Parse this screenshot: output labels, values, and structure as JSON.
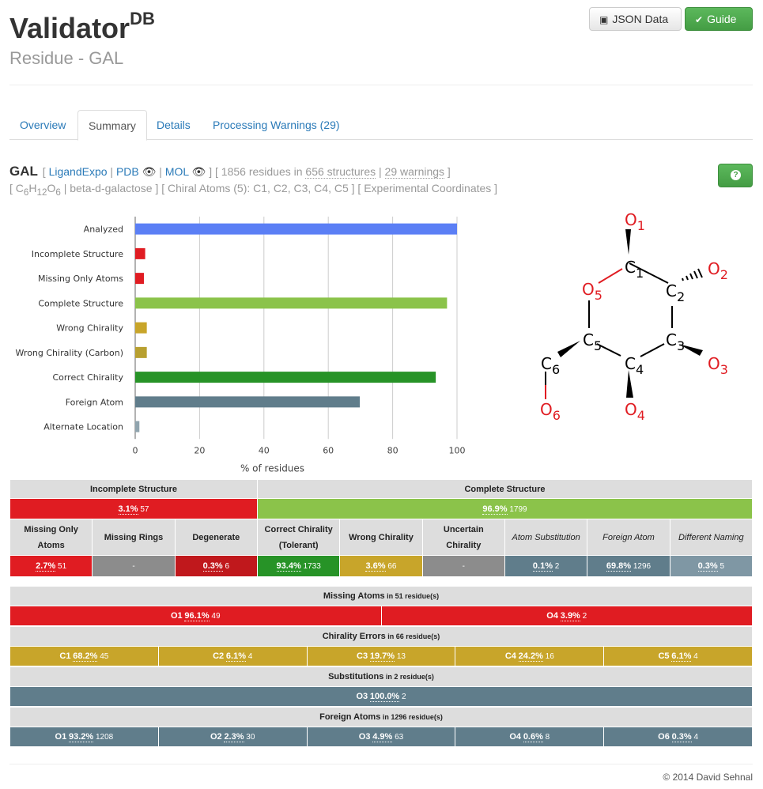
{
  "header": {
    "app_title": "Validator",
    "app_title_sup": "DB",
    "subtitle": "Residue - GAL",
    "json_button": "JSON Data",
    "guide_button": "Guide"
  },
  "tabs": [
    {
      "label": "Overview"
    },
    {
      "label": "Summary"
    },
    {
      "label": "Details"
    },
    {
      "label": "Processing Warnings (29)"
    }
  ],
  "residue": {
    "name": "GAL",
    "open_bracket": "[",
    "link_ligandexpo": "LigandExpo",
    "sep": "|",
    "link_pdb": "PDB",
    "link_mol": "MOL",
    "close_bracket": "]",
    "count_text": "[ 1856 residues in ",
    "structures": "656 structures",
    "pipe": " | ",
    "warnings": "29 warnings",
    "end": " ]",
    "formula_c": "C",
    "formula_c_sub": "6",
    "formula_h": "H",
    "formula_h_sub": "12",
    "formula_o": "O",
    "formula_o_sub": "6",
    "line2_rest": " | beta-d-galactose ] [ Chiral Atoms (5): C1, C2, C3, C4, C5 ] [ Experimental Coordinates ]",
    "line2_open": "[ "
  },
  "chart_data": {
    "type": "bar",
    "orientation": "horizontal",
    "categories": [
      "Analyzed",
      "Incomplete Structure",
      "Missing Only Atoms",
      "Complete Structure",
      "Wrong Chirality",
      "Wrong Chirality (Carbon)",
      "Correct Chirality",
      "Foreign Atom",
      "Alternate Location"
    ],
    "values": [
      100,
      3.1,
      2.7,
      96.9,
      3.6,
      3.6,
      93.4,
      69.8,
      1.3
    ],
    "colors": [
      "#5b7ff5",
      "#e01c22",
      "#e01c22",
      "#8bc34a",
      "#c8a52a",
      "#b8a030",
      "#279327",
      "#607d8b",
      "#90a4ae"
    ],
    "xlabel": "% of residues",
    "xlim": [
      0,
      100
    ],
    "xticks": [
      "0",
      "20",
      "40",
      "60",
      "80",
      "100"
    ],
    "grid": true
  },
  "molecule": {
    "atoms": [
      {
        "el": "O",
        "num": "1"
      },
      {
        "el": "C",
        "num": "1"
      },
      {
        "el": "O",
        "num": "2"
      },
      {
        "el": "C",
        "num": "2"
      },
      {
        "el": "O",
        "num": "5"
      },
      {
        "el": "C",
        "num": "5"
      },
      {
        "el": "C",
        "num": "3"
      },
      {
        "el": "O",
        "num": "3"
      },
      {
        "el": "C",
        "num": "6"
      },
      {
        "el": "C",
        "num": "4"
      },
      {
        "el": "O",
        "num": "6"
      },
      {
        "el": "O",
        "num": "4"
      }
    ],
    "color_oxygen": "#e01c22",
    "color_carbon": "#000000"
  },
  "summary_table": {
    "incomplete": {
      "label": "Incomplete Structure",
      "pct": "3.1%",
      "count": "57"
    },
    "complete": {
      "label": "Complete Structure",
      "pct": "96.9%",
      "count": "1799"
    },
    "cells": [
      {
        "label": "Missing Only Atoms",
        "pct": "2.7%",
        "count": "51",
        "color": "#e01c22"
      },
      {
        "label": "Missing Rings",
        "pct": "-",
        "count": "",
        "color": "#8c8c8c"
      },
      {
        "label": "Degenerate",
        "pct": "0.3%",
        "count": "6",
        "color": "#c0181c"
      },
      {
        "label": "Correct Chirality (Tolerant)",
        "pct": "93.4%",
        "count": "1733",
        "color": "#279327"
      },
      {
        "label": "Wrong Chirality",
        "pct": "3.6%",
        "count": "66",
        "color": "#c8a52a"
      },
      {
        "label": "Uncertain Chirality",
        "pct": "-",
        "count": "",
        "color": "#8c8c8c"
      },
      {
        "label": "Atom Substitution",
        "pct": "0.1%",
        "count": "2",
        "color": "#607d8b"
      },
      {
        "label": "Foreign Atom",
        "pct": "69.8%",
        "count": "1296",
        "color": "#607d8b"
      },
      {
        "label": "Different Naming",
        "pct": "0.3%",
        "count": "5",
        "color": "#7f97a4"
      }
    ]
  },
  "breakdowns": [
    {
      "title": "Missing Atoms",
      "suffix": " in 51 residue(s)",
      "color": "#e01c22",
      "cells": [
        {
          "atom": "O1",
          "pct": "96.1%",
          "count": "49"
        },
        {
          "atom": "O4",
          "pct": "3.9%",
          "count": "2"
        }
      ]
    },
    {
      "title": "Chirality Errors",
      "suffix": " in 66 residue(s)",
      "color": "#c8a52a",
      "cells": [
        {
          "atom": "C1",
          "pct": "68.2%",
          "count": "45"
        },
        {
          "atom": "C2",
          "pct": "6.1%",
          "count": "4"
        },
        {
          "atom": "C3",
          "pct": "19.7%",
          "count": "13"
        },
        {
          "atom": "C4",
          "pct": "24.2%",
          "count": "16"
        },
        {
          "atom": "C5",
          "pct": "6.1%",
          "count": "4"
        }
      ]
    },
    {
      "title": "Substitutions",
      "suffix": " in 2 residue(s)",
      "color": "#607d8b",
      "cells": [
        {
          "atom": "O3",
          "pct": "100.0%",
          "count": "2"
        }
      ]
    },
    {
      "title": "Foreign Atoms",
      "suffix": " in 1296 residue(s)",
      "color": "#607d8b",
      "cells": [
        {
          "atom": "O1",
          "pct": "93.2%",
          "count": "1208"
        },
        {
          "atom": "O2",
          "pct": "2.3%",
          "count": "30"
        },
        {
          "atom": "O3",
          "pct": "4.9%",
          "count": "63"
        },
        {
          "atom": "O4",
          "pct": "0.6%",
          "count": "8"
        },
        {
          "atom": "O6",
          "pct": "0.3%",
          "count": "4"
        }
      ]
    }
  ],
  "footer": {
    "copyright": "© 2014 David Sehnal"
  }
}
